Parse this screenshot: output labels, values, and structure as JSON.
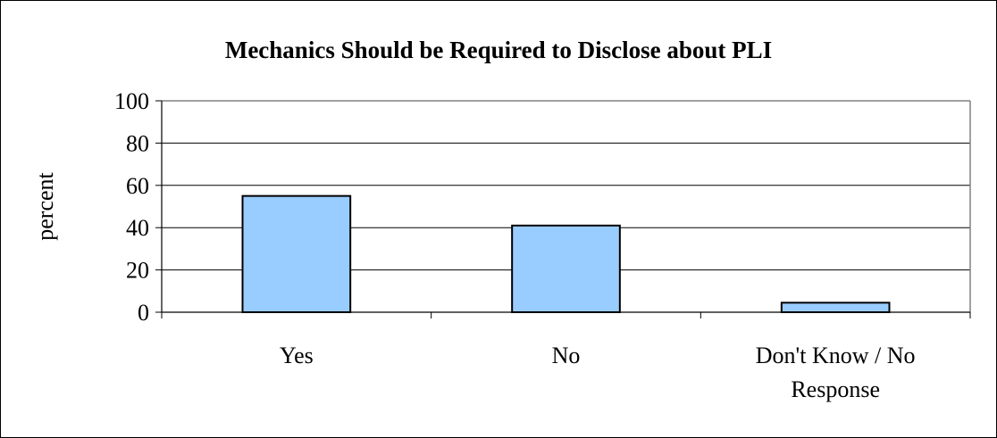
{
  "chart_data": {
    "type": "bar",
    "title": "Mechanics Should be Required to Disclose about PLI",
    "xlabel": "",
    "ylabel": "percent",
    "categories": [
      "Yes",
      "No",
      "Don't Know / No Response"
    ],
    "category_lines": [
      [
        "Yes"
      ],
      [
        "No"
      ],
      [
        "Don't Know / No",
        "Response"
      ]
    ],
    "values": [
      55,
      41,
      4.5
    ],
    "ylim": [
      0,
      100
    ],
    "yticks": [
      0,
      20,
      40,
      60,
      80,
      100
    ],
    "grid": true,
    "legend": "none",
    "bar_color": "#99CCFF",
    "bar_border_color": "#000000",
    "plot_border_color": "#808080"
  }
}
